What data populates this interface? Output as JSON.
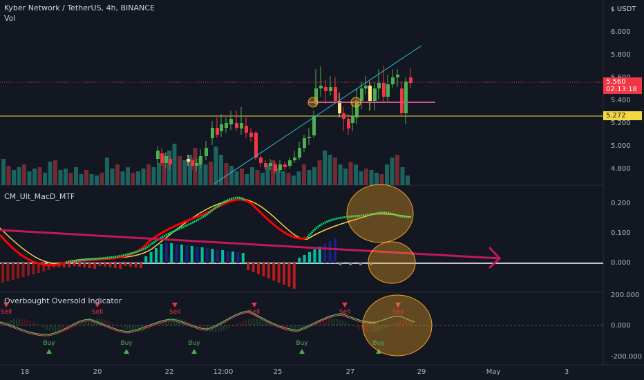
{
  "header": {
    "symbol_title": "Kyber Network / TetherUS, 4h, BINANCE",
    "volume_label": "Vol"
  },
  "currency_label": "USDT",
  "price_axis": [
    "6.000",
    "5.800",
    "5.600",
    "5.400",
    "5.200",
    "5.000",
    "4.800"
  ],
  "price_badges": {
    "last_price": "5.560",
    "countdown": "02:13:18",
    "horizontal_level": "5.272",
    "last_price_color": "#f23645",
    "level_color": "#f5d742"
  },
  "macd_panel": {
    "title": "CM_Ult_MacD_MTF",
    "axis": [
      "0.200",
      "0.100",
      "0.000"
    ]
  },
  "oscillator_panel": {
    "title": "Overbought Oversold Indicator",
    "axis": [
      "200.000",
      "0.000",
      "-200.000"
    ],
    "sell_label": "Sell",
    "buy_label": "Buy"
  },
  "time_axis": [
    "18",
    "20",
    "22",
    "12:00",
    "25",
    "27",
    "29",
    "May",
    "3"
  ],
  "colors": {
    "up": "#26a69a",
    "down": "#ef5350",
    "up_candle": "#4caf50",
    "down_candle": "#f23645",
    "highlight_candle": "#ffe082",
    "trendline": "#26c6da",
    "annotation_circle": "#f5a623",
    "magenta_trend": "#c2185b",
    "macd_fast": "#ff0000",
    "macd_green": "#00e676",
    "macd_signal": "#f5d742"
  }
}
